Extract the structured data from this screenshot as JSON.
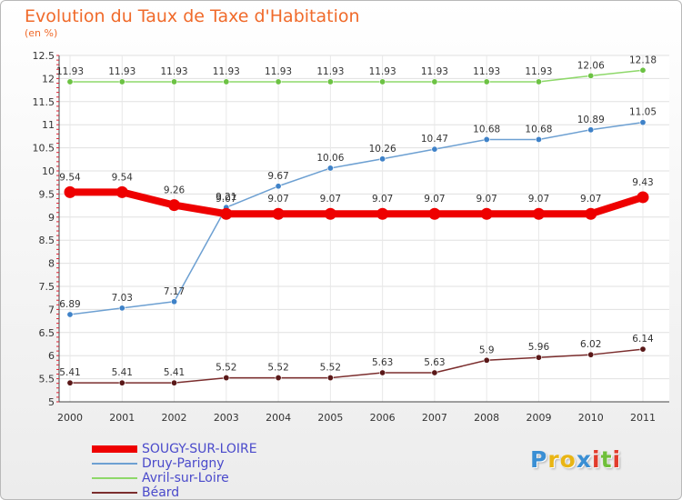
{
  "title": "Evolution du Taux de Taxe d'Habitation",
  "subtitle": "(en %)",
  "logo": {
    "text": "Proxiti",
    "letters": [
      "P",
      "r",
      "o",
      "x",
      "i",
      "t",
      "i"
    ],
    "colors": [
      "#3a8fd4",
      "#e9b514",
      "#e9b514",
      "#3a8fd4",
      "#e23c2c",
      "#6fbf3a",
      "#e23c2c"
    ]
  },
  "chart_data": {
    "type": "line",
    "title": "Evolution du Taux de Taxe d'Habitation",
    "ylabel": "(en %)",
    "xlabel": "",
    "x": [
      "2000",
      "2001",
      "2002",
      "2003",
      "2004",
      "2005",
      "2006",
      "2007",
      "2008",
      "2009",
      "2010",
      "2011"
    ],
    "ylim": [
      5,
      12.5
    ],
    "yticks": [
      "5",
      "5.5",
      "6",
      "6.5",
      "7",
      "7.5",
      "8",
      "8.5",
      "9",
      "9.5",
      "10",
      "10.5",
      "11",
      "11.5",
      "12",
      "12.5"
    ],
    "grid": true,
    "legend_position": "bottom-left",
    "series": [
      {
        "name": "SOUGY-SUR-LOIRE",
        "color": "#ee0000",
        "labelColor": "#4a4acb",
        "width": 8,
        "values": [
          9.54,
          9.54,
          9.26,
          9.07,
          9.07,
          9.07,
          9.07,
          9.07,
          9.07,
          9.07,
          9.07,
          9.43
        ],
        "labels": [
          "9.54",
          "9.54",
          "9.26",
          "9.07",
          "9.07",
          "9.07",
          "9.07",
          "9.07",
          "9.07",
          "9.07",
          "9.07",
          "9.43"
        ]
      },
      {
        "name": "Druy-Parigny",
        "color": "#6da0d2",
        "marker": "#3f82c8",
        "labelColor": "#4a4acb",
        "width": 1.5,
        "values": [
          6.89,
          7.03,
          7.17,
          9.21,
          9.67,
          10.06,
          10.26,
          10.47,
          10.68,
          10.68,
          10.89,
          11.05
        ],
        "labels": [
          "6.89",
          "7.03",
          "7.17",
          "9.21",
          "9.67",
          "10.06",
          "10.26",
          "10.47",
          "10.68",
          "10.68",
          "10.89",
          "11.05"
        ]
      },
      {
        "name": "Avril-sur-Loire",
        "color": "#8ed86a",
        "marker": "#6cc243",
        "labelColor": "#4a4acb",
        "width": 1.5,
        "values": [
          11.93,
          11.93,
          11.93,
          11.93,
          11.93,
          11.93,
          11.93,
          11.93,
          11.93,
          11.93,
          12.06,
          12.18
        ],
        "labels": [
          "11.93",
          "11.93",
          "11.93",
          "11.93",
          "11.93",
          "11.93",
          "11.93",
          "11.93",
          "11.93",
          "11.93",
          "12.06",
          "12.18"
        ]
      },
      {
        "name": "Béard",
        "color": "#7b2d2d",
        "marker": "#5a1818",
        "labelColor": "#4a4acb",
        "width": 1.5,
        "values": [
          5.41,
          5.41,
          5.41,
          5.52,
          5.52,
          5.52,
          5.63,
          5.63,
          5.9,
          5.96,
          6.02,
          6.14
        ],
        "labels": [
          "5.41",
          "5.41",
          "5.41",
          "5.52",
          "5.52",
          "5.52",
          "5.63",
          "5.63",
          "5.9",
          "5.96",
          "6.02",
          "6.14"
        ]
      }
    ]
  }
}
